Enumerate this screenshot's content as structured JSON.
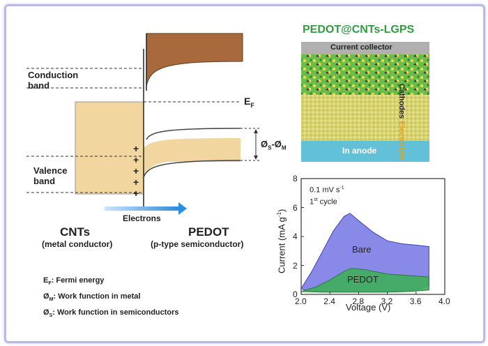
{
  "band_diagram": {
    "conduction_band": "Conduction\nband",
    "valence_band": "Valence\nband",
    "fermi_label": "E",
    "fermi_sub": "F",
    "barrier_label": "Ø",
    "barrier_sub_s": "S",
    "barrier_dash": "-Ø",
    "barrier_sub_m": "M",
    "electrons": "Electrons",
    "plus_sign": "+",
    "cnt_title": "CNTs",
    "cnt_subtitle": "(metal conductor)",
    "pedot_title": "PEDOT",
    "pedot_subtitle": "(p-type semiconductor)",
    "colors": {
      "band_fill": "#f2d6a0",
      "conduction_fill": "#a86a3c",
      "arrow": "#2b8ce0"
    }
  },
  "legend": [
    {
      "sym": "E",
      "sub": "F",
      "text": ": Fermi energy"
    },
    {
      "sym": "Ø",
      "sub": "M",
      "text": ": Work function in metal"
    },
    {
      "sym": "Ø",
      "sub": "S",
      "text": ": Work function in semiconductors"
    }
  ],
  "cell_schematic": {
    "title": "PEDOT@CNTs-LGPS",
    "current_collector": "Current collector",
    "cathodes": "Cathodes",
    "electrolyte": "Electrolyte",
    "anode": "In anode",
    "colors": {
      "title": "#2e9e3e",
      "collector": "#b0b0b0",
      "electrolyte": "#d9d472",
      "anode": "#62c1d8",
      "electrolyte_text": "#e0a020"
    }
  },
  "chart_data": {
    "type": "area",
    "annotation_line1": "0.1 mV s",
    "annotation_line1_sup": "-1",
    "annotation_line2": "1",
    "annotation_line2_sup": "st",
    "annotation_line2_rest": " cycle",
    "xlabel": "Voltage (V)",
    "ylabel": "Current (mA g",
    "ylabel_sup": "-1",
    "ylabel_close": ")",
    "xlim": [
      2.0,
      4.0
    ],
    "ylim": [
      0,
      8
    ],
    "xticks": [
      "2.0",
      "2.4",
      "2.8",
      "3.2",
      "3.6",
      "4.0"
    ],
    "yticks": [
      "0",
      "2",
      "4",
      "6",
      "8"
    ],
    "series": [
      {
        "name": "Bare",
        "color": "#7c7ce6",
        "stroke": "#4040b8",
        "x": [
          2.0,
          2.15,
          2.3,
          2.45,
          2.6,
          2.68,
          2.8,
          3.0,
          3.2,
          3.4,
          3.6,
          3.78,
          3.78,
          3.6,
          3.3,
          3.0,
          2.7,
          2.4,
          2.1,
          2.0
        ],
        "y": [
          0.4,
          1.6,
          3.0,
          4.4,
          5.4,
          5.6,
          5.1,
          4.3,
          3.7,
          3.5,
          3.4,
          3.3,
          0.6,
          0.3,
          0.2,
          0.2,
          0.2,
          0.2,
          0.2,
          0.4
        ]
      },
      {
        "name": "PEDOT",
        "color": "#3fae5a",
        "stroke": "#2a7a3a",
        "x": [
          2.0,
          2.2,
          2.4,
          2.6,
          2.7,
          2.9,
          3.2,
          3.5,
          3.78,
          3.78,
          3.5,
          3.2,
          2.9,
          2.6,
          2.3,
          2.0
        ],
        "y": [
          0.2,
          0.5,
          1.0,
          1.6,
          1.8,
          1.7,
          1.4,
          1.3,
          1.2,
          0.3,
          0.2,
          0.15,
          0.15,
          0.15,
          0.15,
          0.2
        ]
      }
    ]
  }
}
